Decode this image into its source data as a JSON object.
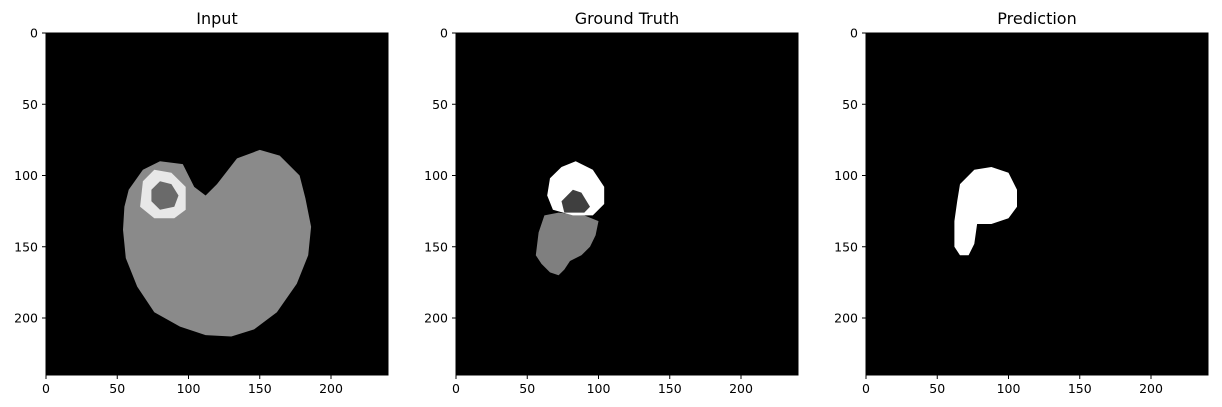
{
  "chart_data": [
    {
      "type": "heatmap",
      "title": "Input",
      "xlim": [
        0,
        240
      ],
      "ylim": [
        240,
        0
      ],
      "xticks": [
        0,
        50,
        100,
        150,
        200
      ],
      "yticks": [
        0,
        50,
        100,
        150,
        200
      ],
      "colormap": "gray",
      "regions": [
        {
          "name": "brain",
          "gray": "#8a8a8a",
          "outline": [
            [
              58,
              110
            ],
            [
              68,
              96
            ],
            [
              80,
              90
            ],
            [
              96,
              92
            ],
            [
              104,
              108
            ],
            [
              112,
              114
            ],
            [
              120,
              106
            ],
            [
              134,
              88
            ],
            [
              150,
              82
            ],
            [
              164,
              86
            ],
            [
              178,
              100
            ],
            [
              182,
              116
            ],
            [
              186,
              136
            ],
            [
              184,
              156
            ],
            [
              176,
              176
            ],
            [
              162,
              196
            ],
            [
              146,
              208
            ],
            [
              130,
              213
            ],
            [
              112,
              212
            ],
            [
              94,
              206
            ],
            [
              76,
              196
            ],
            [
              64,
              178
            ],
            [
              56,
              158
            ],
            [
              54,
              138
            ],
            [
              55,
              122
            ]
          ]
        },
        {
          "name": "enhancing-ring-outer",
          "gray": "#e8e8e8",
          "outline": [
            [
              68,
              104
            ],
            [
              76,
              96
            ],
            [
              88,
              98
            ],
            [
              98,
              108
            ],
            [
              98,
              124
            ],
            [
              90,
              130
            ],
            [
              76,
              130
            ],
            [
              66,
              122
            ]
          ]
        },
        {
          "name": "enhancing-ring-inner",
          "gray": "#6a6a6a",
          "outline": [
            [
              74,
              110
            ],
            [
              80,
              104
            ],
            [
              88,
              106
            ],
            [
              93,
              114
            ],
            [
              90,
              122
            ],
            [
              80,
              124
            ],
            [
              74,
              118
            ]
          ]
        }
      ]
    },
    {
      "type": "heatmap",
      "title": "Ground Truth",
      "xlim": [
        0,
        240
      ],
      "ylim": [
        240,
        0
      ],
      "xticks": [
        0,
        50,
        100,
        150,
        200
      ],
      "yticks": [
        0,
        50,
        100,
        150,
        200
      ],
      "colormap": "gray",
      "regions": [
        {
          "name": "edema",
          "gray": "#7f7f7f",
          "outline": [
            [
              62,
              128
            ],
            [
              72,
              126
            ],
            [
              90,
              128
            ],
            [
              100,
              132
            ],
            [
              98,
              142
            ],
            [
              94,
              150
            ],
            [
              88,
              156
            ],
            [
              80,
              160
            ],
            [
              76,
              166
            ],
            [
              72,
              170
            ],
            [
              66,
              168
            ],
            [
              60,
              162
            ],
            [
              56,
              156
            ],
            [
              58,
              140
            ]
          ]
        },
        {
          "name": "enhancing-tumor",
          "gray": "#ffffff",
          "outline": [
            [
              66,
              102
            ],
            [
              74,
              94
            ],
            [
              84,
              90
            ],
            [
              96,
              96
            ],
            [
              104,
              108
            ],
            [
              104,
              120
            ],
            [
              96,
              128
            ],
            [
              82,
              128
            ],
            [
              68,
              124
            ],
            [
              64,
              114
            ]
          ]
        },
        {
          "name": "necrotic-core",
          "gray": "#3f3f3f",
          "outline": [
            [
              74,
              118
            ],
            [
              82,
              110
            ],
            [
              88,
              112
            ],
            [
              94,
              122
            ],
            [
              90,
              126
            ],
            [
              76,
              126
            ]
          ]
        }
      ]
    },
    {
      "type": "heatmap",
      "title": "Prediction",
      "xlim": [
        0,
        240
      ],
      "ylim": [
        240,
        0
      ],
      "xticks": [
        0,
        50,
        100,
        150,
        200
      ],
      "yticks": [
        0,
        50,
        100,
        150,
        200
      ],
      "colormap": "gray",
      "regions": [
        {
          "name": "predicted-tumor",
          "gray": "#ffffff",
          "outline": [
            [
              66,
              106
            ],
            [
              76,
              96
            ],
            [
              88,
              94
            ],
            [
              100,
              98
            ],
            [
              106,
              110
            ],
            [
              106,
              122
            ],
            [
              100,
              130
            ],
            [
              88,
              134
            ],
            [
              78,
              134
            ],
            [
              76,
              148
            ],
            [
              72,
              156
            ],
            [
              66,
              156
            ],
            [
              62,
              150
            ],
            [
              62,
              132
            ],
            [
              64,
              118
            ]
          ]
        }
      ]
    }
  ]
}
